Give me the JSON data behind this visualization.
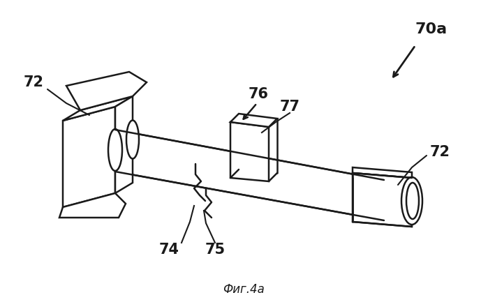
{
  "background_color": "#ffffff",
  "line_color": "#1a1a1a",
  "figure_caption": "Фиг.4а",
  "caption_fontsize": 12,
  "lw": 1.8,
  "label_fontsize": 15
}
